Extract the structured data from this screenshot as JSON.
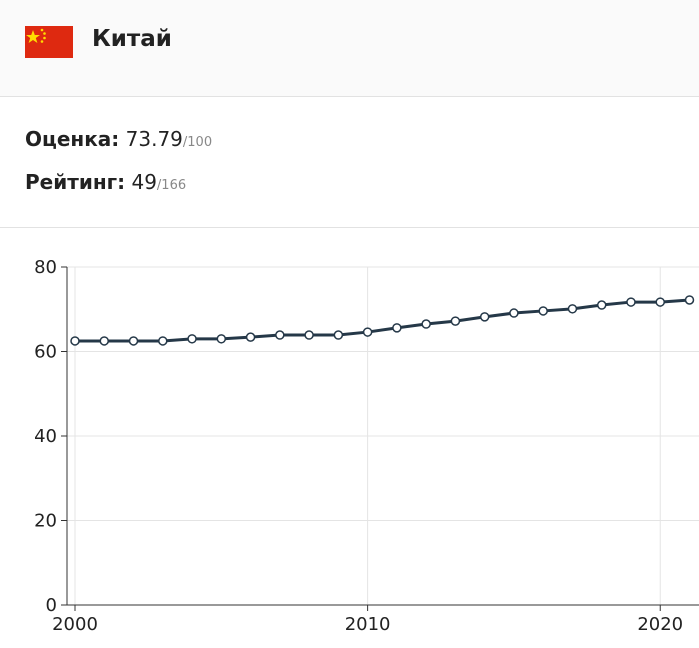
{
  "header": {
    "country": "Китай"
  },
  "stats": {
    "score": {
      "label": "Оценка:",
      "value": "73.79",
      "max": "/100"
    },
    "rank": {
      "label": "Рейтинг:",
      "value": "49",
      "max": "/166"
    }
  },
  "chart_data": {
    "type": "line",
    "x": [
      2000,
      2001,
      2002,
      2003,
      2004,
      2005,
      2006,
      2007,
      2008,
      2009,
      2010,
      2011,
      2012,
      2013,
      2014,
      2015,
      2016,
      2017,
      2018,
      2019,
      2020,
      2021
    ],
    "series": [
      {
        "color": "#253848",
        "values": [
          62.5,
          62.5,
          62.5,
          62.5,
          63.0,
          63.0,
          63.4,
          63.9,
          63.9,
          63.9,
          64.6,
          65.6,
          66.5,
          67.2,
          68.2,
          69.1,
          69.6,
          70.1,
          71.0,
          71.7,
          71.7,
          72.2
        ]
      }
    ],
    "xlim": [
      2000,
      2021
    ],
    "xticks": [
      2000,
      2010,
      2020
    ],
    "ylim": [
      0,
      80
    ],
    "yticks": [
      0,
      20,
      40,
      60,
      80
    ],
    "grid": true
  }
}
